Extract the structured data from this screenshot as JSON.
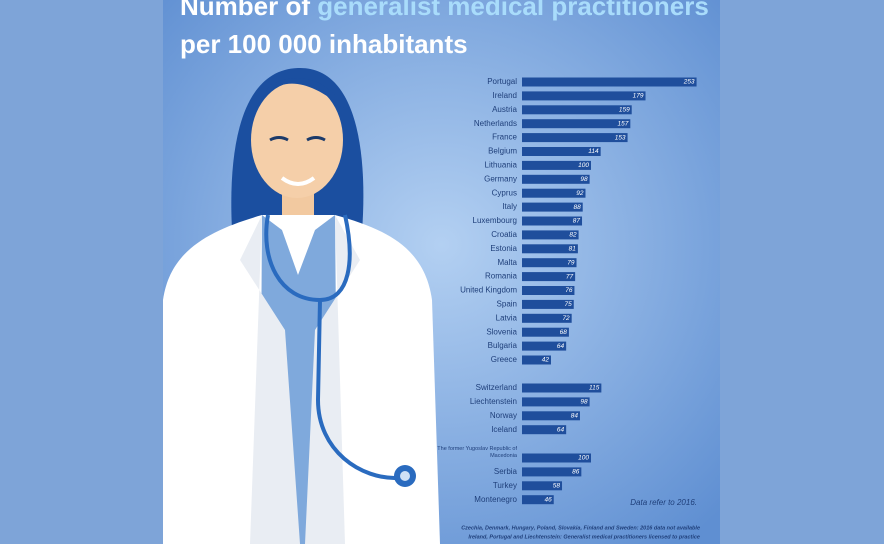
{
  "chart_data": {
    "type": "bar",
    "orientation": "horizontal",
    "title_part1": "Number of ",
    "title_part2": "generalist medical practitioners",
    "subtitle": "per 100 000 inhabitants",
    "color": "#1f4e9c",
    "groups": [
      {
        "categories": [
          "Portugal",
          "Ireland",
          "Austria",
          "Netherlands",
          "France",
          "Belgium",
          "Lithuania",
          "Germany",
          "Cyprus",
          "Italy",
          "Luxembourg",
          "Croatia",
          "Estonia",
          "Malta",
          "Romania",
          "United Kingdom",
          "Spain",
          "Latvia",
          "Slovenia",
          "Bulgaria",
          "Greece"
        ],
        "values": [
          253,
          179,
          159,
          157,
          153,
          114,
          100,
          98,
          92,
          88,
          87,
          82,
          81,
          79,
          77,
          76,
          75,
          72,
          68,
          64,
          42
        ]
      },
      {
        "categories": [
          "Switzerland",
          "Liechtenstein",
          "Norway",
          "Iceland"
        ],
        "values": [
          115,
          98,
          84,
          64
        ]
      },
      {
        "categories": [
          "The former Yugoslav Republic of Macedonia",
          "Serbia",
          "Turkey",
          "Montenegro"
        ],
        "values": [
          100,
          86,
          58,
          46
        ]
      }
    ],
    "note": "Data refer to 2016.",
    "footnotes": [
      "Czechia, Denmark, Hungary, Poland, Slovakia, Finland and Sweden: 2016 data not available",
      "Ireland, Portugal and Liechtenstein: Generalist medical practitioners licensed to practice"
    ]
  }
}
